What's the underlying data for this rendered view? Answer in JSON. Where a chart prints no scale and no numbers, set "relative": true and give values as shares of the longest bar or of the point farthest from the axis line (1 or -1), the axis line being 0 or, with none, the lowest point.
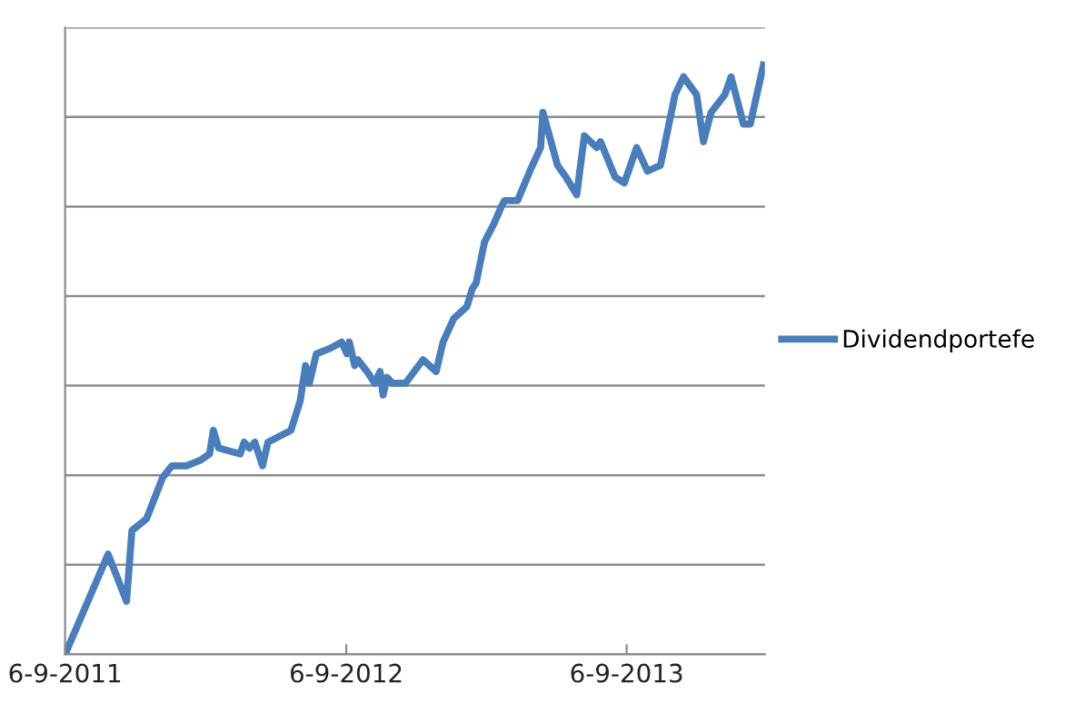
{
  "chart_data": {
    "type": "line",
    "x": [
      "2011-09-06",
      "2011-11-01",
      "2011-11-25",
      "2011-12-02",
      "2011-12-21",
      "2012-01-11",
      "2012-01-23",
      "2012-02-11",
      "2012-03-01",
      "2012-03-12",
      "2012-03-17",
      "2012-03-24",
      "2012-04-21",
      "2012-04-26",
      "2012-05-03",
      "2012-05-10",
      "2012-05-20",
      "2012-05-27",
      "2012-06-26",
      "2012-07-08",
      "2012-07-15",
      "2012-07-20",
      "2012-07-29",
      "2012-08-17",
      "2012-08-31",
      "2012-09-07",
      "2012-09-10",
      "2012-09-17",
      "2012-09-21",
      "2012-10-03",
      "2012-10-13",
      "2012-10-20",
      "2012-10-24",
      "2012-10-29",
      "2012-11-05",
      "2012-11-22",
      "2012-12-15",
      "2013-01-01",
      "2013-01-10",
      "2013-01-24",
      "2013-02-10",
      "2013-02-17",
      "2013-02-22",
      "2013-03-05",
      "2013-03-17",
      "2013-03-27",
      "2013-03-31",
      "2013-04-17",
      "2013-05-03",
      "2013-05-17",
      "2013-05-20",
      "2013-06-08",
      "2013-06-19",
      "2013-07-03",
      "2013-07-13",
      "2013-07-29",
      "2013-08-03",
      "2013-08-22",
      "2013-09-03",
      "2013-09-19",
      "2013-10-03",
      "2013-10-20",
      "2013-11-08",
      "2013-11-19",
      "2013-12-06",
      "2013-12-15",
      "2013-12-25",
      "2014-01-12",
      "2014-01-20",
      "2014-02-05",
      "2014-02-14",
      "2014-03-03"
    ],
    "series": [
      {
        "name": "Dividendportefe",
        "color": "#4a7ebb",
        "values": [
          0,
          0.17,
          0.09,
          0.21,
          0.23,
          0.3,
          0.32,
          0.32,
          0.33,
          0.34,
          0.38,
          0.35,
          0.34,
          0.36,
          0.35,
          0.36,
          0.32,
          0.36,
          0.38,
          0.43,
          0.49,
          0.46,
          0.51,
          0.52,
          0.53,
          0.51,
          0.53,
          0.49,
          0.5,
          0.48,
          0.46,
          0.48,
          0.44,
          0.47,
          0.46,
          0.46,
          0.5,
          0.48,
          0.53,
          0.57,
          0.59,
          0.62,
          0.63,
          0.7,
          0.73,
          0.76,
          0.77,
          0.77,
          0.82,
          0.86,
          0.92,
          0.83,
          0.81,
          0.78,
          0.88,
          0.86,
          0.87,
          0.81,
          0.8,
          0.86,
          0.82,
          0.83,
          0.95,
          0.98,
          0.95,
          0.87,
          0.92,
          0.95,
          0.98,
          0.9,
          0.9,
          1
        ]
      }
    ],
    "relative": true,
    "xlim": [
      "2011-09-06",
      "2014-03-05"
    ],
    "xticks": [
      {
        "value": "2011-09-06",
        "label": "6-9-2011"
      },
      {
        "value": "2012-09-06",
        "label": "6-9-2012"
      },
      {
        "value": "2013-09-06",
        "label": "6-9-2013"
      }
    ],
    "grid": "y",
    "legend": "right",
    "marker": "none",
    "line_style": "solid"
  }
}
